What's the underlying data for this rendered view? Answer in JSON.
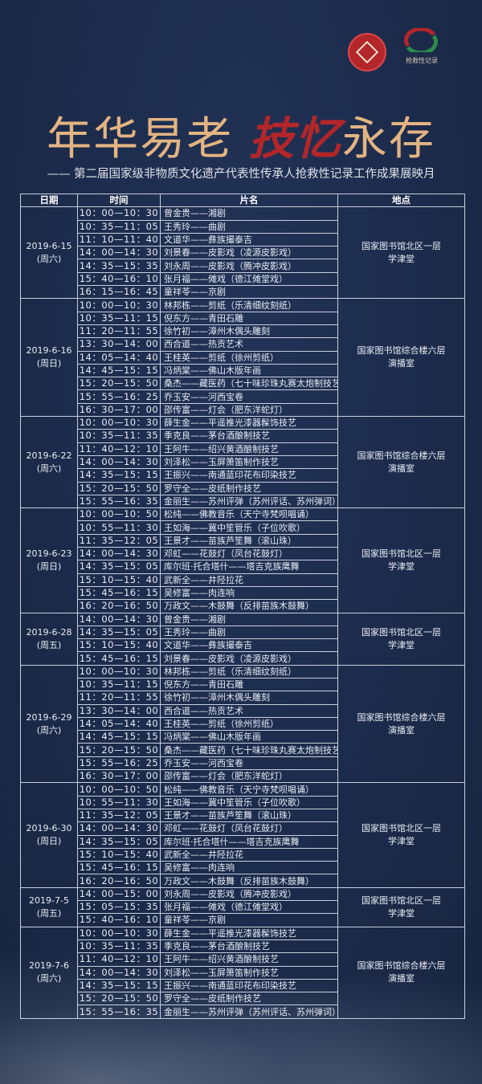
{
  "logos": {
    "logo_right_text": "抢救性记录"
  },
  "title": {
    "part1": "年华易老",
    "part2": "技忆",
    "part3": "永存"
  },
  "subtitle": "—— 第二届国家级非物质文化遗产代表性传承人抢救性记录工作成果展映月",
  "colors": {
    "background": "#1c2b4b",
    "title_gold": "#e3b482",
    "title_red": "#b3262a",
    "grid": "#c8d0de"
  },
  "table": {
    "headers": [
      "日期",
      "时间",
      "片名",
      "地点"
    ],
    "groups": [
      {
        "date": "2019-6-15",
        "weekday": "(周六)",
        "venue": "国家图书馆北区一层",
        "room": "学津堂",
        "rows": [
          [
            "10：00—10：30",
            "曾金贵——湘剧"
          ],
          [
            "10：35—11：05",
            "王秀玲——曲剧"
          ],
          [
            "11：10—11：40",
            "文道华——彝族撮泰吉"
          ],
          [
            "14：00—14：30",
            "刘景春——皮影戏（凌源皮影戏）"
          ],
          [
            "14：35—15：35",
            "刘永周——皮影戏（腾冲皮影戏）"
          ],
          [
            "15：40—16：10",
            "张月福——傩戏（德江傩堂戏）"
          ],
          [
            "16：15—16：45",
            "童祥苓——京剧"
          ]
        ]
      },
      {
        "date": "2019-6-16",
        "weekday": "(周日)",
        "venue": "国家图书馆综合楼六层",
        "room": "演播室",
        "rows": [
          [
            "10：00—10：30",
            "林邦栋——剪纸（乐清细纹刻纸）"
          ],
          [
            "10：35—11：15",
            "倪东方——青田石雕"
          ],
          [
            "11：20—11：55",
            "徐竹初——漳州木偶头雕刻"
          ],
          [
            "13：30—14：00",
            "西合道——热贡艺术"
          ],
          [
            "14：05—14：40",
            "王桂英——剪纸（徐州剪纸）"
          ],
          [
            "14：45—15：15",
            "冯炳棠——佛山木版年画"
          ],
          [
            "15：20—15：50",
            "桑杰——藏医药（七十味珍珠丸赛太炮制技艺）"
          ],
          [
            "15：55—16：25",
            "乔玉安——河西宝卷"
          ],
          [
            "16：30—17：00",
            "邵传富——灯会（肥东洋蛇灯）"
          ]
        ]
      },
      {
        "date": "2019-6-22",
        "weekday": "(周六)",
        "venue": "国家图书馆综合楼六层",
        "room": "演播室",
        "rows": [
          [
            "10：00—10：30",
            "薛生金——平遥推光漆器髹饰技艺"
          ],
          [
            "10：35—11：35",
            "季克良——茅台酒酿制技艺"
          ],
          [
            "11：40—12：10",
            "王阿牛——绍兴黄酒酿制技艺"
          ],
          [
            "14：00—14：30",
            "刘泽松——玉屏箫笛制作技艺"
          ],
          [
            "14：35—15：15",
            "王振兴——南通蓝印花布印染技艺"
          ],
          [
            "15：20—15：50",
            "罗守全——皮纸制作技艺"
          ],
          [
            "15：55—16：35",
            "金丽生——苏州评弹（苏州评话、苏州弹词）"
          ]
        ]
      },
      {
        "date": "2019-6-23",
        "weekday": "(周日)",
        "venue": "国家图书馆北区一层",
        "room": "学津堂",
        "rows": [
          [
            "10：00—10：50",
            "松纯——佛教音乐（天宁寺梵呗唱诵）"
          ],
          [
            "10：55—11：30",
            "王如海——冀中笙管乐（子位吹歌）"
          ],
          [
            "11：35—12：05",
            "王景才——苗族芦笙舞（滚山珠）"
          ],
          [
            "14：00—14：30",
            "邓虹——花鼓灯（凤台花鼓灯）"
          ],
          [
            "14：35—15：05",
            "库尔班·托合塔什——塔吉克族鹰舞"
          ],
          [
            "15：10—15：40",
            "武新全——井陉拉花"
          ],
          [
            "15：45—16：15",
            "吴修富——肉连响"
          ],
          [
            "16：20—16：50",
            "万政文——木鼓舞（反排苗族木鼓舞）"
          ]
        ]
      },
      {
        "date": "2019-6-28",
        "weekday": "(周五)",
        "venue": "国家图书馆北区一层",
        "room": "学津堂",
        "rows": [
          [
            "14：00—14：30",
            "曾金贵——湘剧"
          ],
          [
            "14：35—15：05",
            "王秀玲——曲剧"
          ],
          [
            "15：10—15：40",
            "文道华——彝族撮泰吉"
          ],
          [
            "15：45—16：15",
            "刘景春——皮影戏（凌源皮影戏）"
          ]
        ]
      },
      {
        "date": "2019-6-29",
        "weekday": "(周六)",
        "venue": "国家图书馆综合楼六层",
        "room": "演播室",
        "rows": [
          [
            "10：00—10：30",
            "林邦栋——剪纸（乐清细纹刻纸）"
          ],
          [
            "10：35—11：15",
            "倪东方——青田石雕"
          ],
          [
            "11：20—11：55",
            "徐竹初——漳州木偶头雕刻"
          ],
          [
            "13：30—14：00",
            "西合道——热贡艺术"
          ],
          [
            "14：05—14：40",
            "王桂英——剪纸（徐州剪纸）"
          ],
          [
            "14：45—15：15",
            "冯炳棠——佛山木版年画"
          ],
          [
            "15：20—15：50",
            "桑杰——藏医药（七十味珍珠丸赛太炮制技艺）"
          ],
          [
            "15：55—16：25",
            "乔玉安——河西宝卷"
          ],
          [
            "16：30—17：00",
            "邵传富——灯会（肥东洋蛇灯）"
          ]
        ]
      },
      {
        "date": "2019-6-30",
        "weekday": "(周日)",
        "venue": "国家图书馆北区一层",
        "room": "学津堂",
        "rows": [
          [
            "10：00—10：50",
            "松纯——佛教音乐（天宁寺梵呗唱诵）"
          ],
          [
            "10：55—11：30",
            "王如海——冀中笙管乐（子位吹歌）"
          ],
          [
            "11：35—12：05",
            "王景才——苗族芦笙舞（滚山珠）"
          ],
          [
            "14：00—14：30",
            "邓虹——花鼓灯（凤台花鼓灯）"
          ],
          [
            "14：35—15：05",
            "库尔班·托合塔什——塔吉克族鹰舞"
          ],
          [
            "15：10—15：40",
            "武新全——井陉拉花"
          ],
          [
            "15：45—16：15",
            "吴修富——肉连响"
          ],
          [
            "16：20—16：50",
            "万政文——木鼓舞（反排苗族木鼓舞）"
          ]
        ]
      },
      {
        "date": "2019-7-5",
        "weekday": "(周五)",
        "venue": "国家图书馆北区一层",
        "room": "学津堂",
        "rows": [
          [
            "14：00—15：00",
            "刘永周——皮影戏（腾冲皮影戏）"
          ],
          [
            "15：05—15：35",
            "张月福——傩戏（德江傩堂戏）"
          ],
          [
            "15：40—16：10",
            "童祥苓——京剧"
          ]
        ]
      },
      {
        "date": "2019-7-6",
        "weekday": "(周六)",
        "venue": "国家图书馆综合楼六层",
        "room": "演播室",
        "rows": [
          [
            "10：00—10：30",
            "薛生金——平遥推光漆器髹饰技艺"
          ],
          [
            "10：35—11：35",
            "季克良——茅台酒酿制技艺"
          ],
          [
            "11：40—12：10",
            "王阿牛——绍兴黄酒酿制技艺"
          ],
          [
            "14：00—14：30",
            "刘泽松——玉屏箫笛制作技艺"
          ],
          [
            "14：35—15：15",
            "王振兴——南通蓝印花布印染技艺"
          ],
          [
            "15：20—15：50",
            "罗守全——皮纸制作技艺"
          ],
          [
            "15：55—16：35",
            "金丽生——苏州评弹（苏州评话、苏州弹词）"
          ]
        ]
      }
    ]
  }
}
